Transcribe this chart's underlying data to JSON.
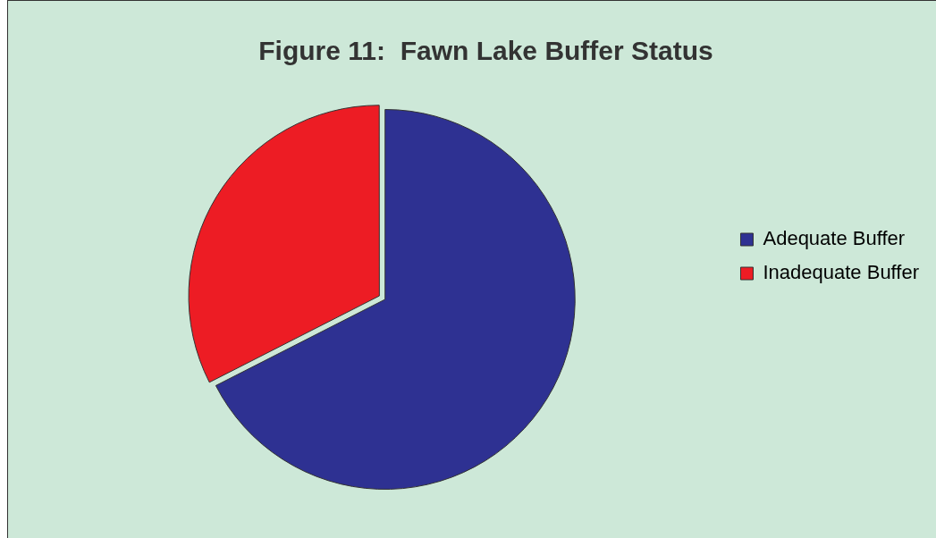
{
  "chart_data": {
    "type": "pie",
    "title": "Figure 11:  Fawn Lake Buffer Status",
    "categories": [
      "Adequate Buffer",
      "Inadequate Buffer"
    ],
    "values": [
      67.5,
      32.5
    ],
    "colors": [
      "#2e3192",
      "#ed1c24"
    ],
    "legend": "right"
  }
}
